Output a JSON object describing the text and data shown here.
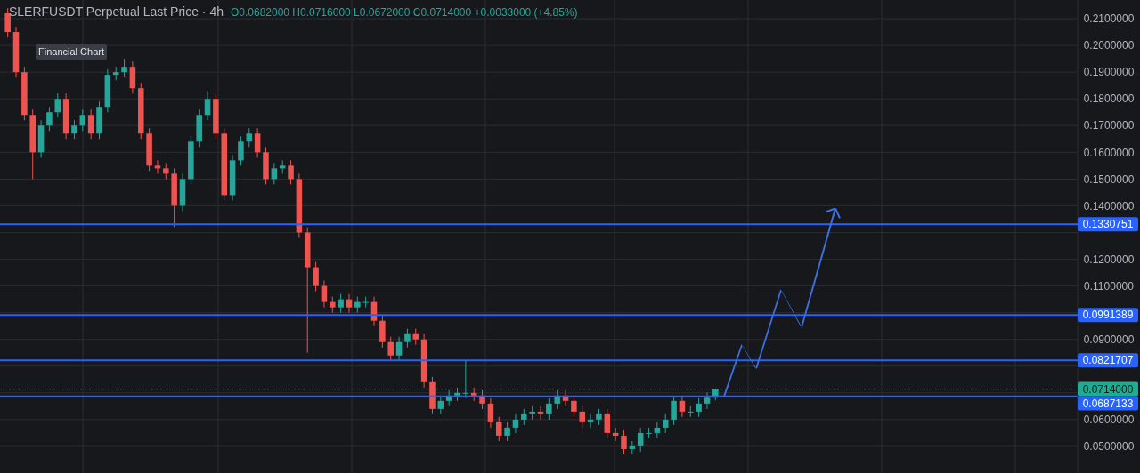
{
  "chart_data": {
    "type": "candlestick",
    "title": "SLERFUSDT Perpetual Last Price · 4h",
    "subtitle": "O0.0682000 H0.0716000 L0.0672000 C0.0714000 +0.0033000 (+4.85%)",
    "annotations": [
      "Financial Chart"
    ],
    "categories": [
      null,
      null,
      null,
      null,
      null,
      null,
      null,
      null,
      null,
      null,
      null,
      null,
      null,
      null,
      null,
      null,
      null,
      null,
      null,
      null,
      null,
      null,
      null,
      null,
      null,
      null,
      null,
      null,
      null,
      null,
      null,
      null,
      null,
      null,
      null,
      null,
      null,
      null,
      null,
      null,
      null,
      null,
      null,
      null,
      null,
      null,
      null,
      null,
      null,
      null,
      null,
      null,
      null,
      null,
      null,
      null,
      null,
      null,
      null,
      null,
      null,
      null,
      null,
      null,
      null,
      null,
      null,
      null,
      null,
      null,
      null,
      null,
      null,
      null,
      null,
      null,
      null,
      null,
      null,
      null,
      null,
      null,
      null,
      null,
      null,
      null,
      null,
      null,
      null,
      null,
      null,
      null,
      null,
      null,
      null,
      null,
      null,
      null,
      null,
      null,
      null,
      null,
      null,
      null,
      null,
      null,
      null,
      null,
      null,
      null,
      null,
      null,
      null,
      null,
      null,
      null,
      null,
      null,
      null,
      null,
      null,
      null,
      null,
      null,
      null,
      null,
      null,
      null,
      null
    ],
    "ohlc": [
      [
        0.212,
        0.214,
        0.203,
        0.205
      ],
      [
        0.205,
        0.207,
        0.188,
        0.19
      ],
      [
        0.19,
        0.192,
        0.172,
        0.174
      ],
      [
        0.174,
        0.176,
        0.15,
        0.16
      ],
      [
        0.16,
        0.172,
        0.158,
        0.17
      ],
      [
        0.17,
        0.177,
        0.168,
        0.175
      ],
      [
        0.175,
        0.182,
        0.173,
        0.18
      ],
      [
        0.18,
        0.182,
        0.165,
        0.167
      ],
      [
        0.167,
        0.172,
        0.165,
        0.17
      ],
      [
        0.17,
        0.176,
        0.168,
        0.174
      ],
      [
        0.174,
        0.176,
        0.165,
        0.167
      ],
      [
        0.167,
        0.179,
        0.165,
        0.177
      ],
      [
        0.177,
        0.191,
        0.175,
        0.189
      ],
      [
        0.189,
        0.192,
        0.187,
        0.19
      ],
      [
        0.19,
        0.195,
        0.188,
        0.192
      ],
      [
        0.192,
        0.194,
        0.182,
        0.184
      ],
      [
        0.184,
        0.186,
        0.165,
        0.167
      ],
      [
        0.167,
        0.169,
        0.153,
        0.155
      ],
      [
        0.155,
        0.157,
        0.152,
        0.154
      ],
      [
        0.154,
        0.156,
        0.15,
        0.152
      ],
      [
        0.152,
        0.154,
        0.132,
        0.14
      ],
      [
        0.14,
        0.152,
        0.138,
        0.15
      ],
      [
        0.15,
        0.166,
        0.148,
        0.164
      ],
      [
        0.164,
        0.176,
        0.162,
        0.174
      ],
      [
        0.174,
        0.183,
        0.172,
        0.18
      ],
      [
        0.18,
        0.182,
        0.165,
        0.167
      ],
      [
        0.167,
        0.169,
        0.142,
        0.144
      ],
      [
        0.144,
        0.159,
        0.142,
        0.157
      ],
      [
        0.157,
        0.166,
        0.155,
        0.164
      ],
      [
        0.164,
        0.169,
        0.162,
        0.167
      ],
      [
        0.167,
        0.169,
        0.158,
        0.16
      ],
      [
        0.16,
        0.162,
        0.148,
        0.15
      ],
      [
        0.15,
        0.156,
        0.148,
        0.154
      ],
      [
        0.154,
        0.157,
        0.152,
        0.155
      ],
      [
        0.155,
        0.157,
        0.148,
        0.15
      ],
      [
        0.15,
        0.152,
        0.128,
        0.13
      ],
      [
        0.13,
        0.132,
        0.085,
        0.117
      ],
      [
        0.117,
        0.119,
        0.108,
        0.11
      ],
      [
        0.11,
        0.112,
        0.102,
        0.104
      ],
      [
        0.104,
        0.106,
        0.1,
        0.102
      ],
      [
        0.102,
        0.107,
        0.1,
        0.105
      ],
      [
        0.105,
        0.107,
        0.1,
        0.102
      ],
      [
        0.102,
        0.106,
        0.1,
        0.104
      ],
      [
        0.104,
        0.106,
        0.102,
        0.104
      ],
      [
        0.104,
        0.106,
        0.095,
        0.097
      ],
      [
        0.097,
        0.099,
        0.087,
        0.089
      ],
      [
        0.089,
        0.091,
        0.082,
        0.084
      ],
      [
        0.084,
        0.091,
        0.082,
        0.089
      ],
      [
        0.089,
        0.094,
        0.087,
        0.092
      ],
      [
        0.092,
        0.094,
        0.088,
        0.09
      ],
      [
        0.09,
        0.092,
        0.072,
        0.074
      ],
      [
        0.074,
        0.076,
        0.062,
        0.064
      ],
      [
        0.064,
        0.069,
        0.062,
        0.067
      ],
      [
        0.067,
        0.071,
        0.065,
        0.069
      ],
      [
        0.069,
        0.072,
        0.067,
        0.07
      ],
      [
        0.07,
        0.082,
        0.068,
        0.07
      ],
      [
        0.07,
        0.072,
        0.067,
        0.069
      ],
      [
        0.069,
        0.071,
        0.064,
        0.066
      ],
      [
        0.066,
        0.068,
        0.057,
        0.059
      ],
      [
        0.059,
        0.061,
        0.052,
        0.054
      ],
      [
        0.054,
        0.059,
        0.052,
        0.057
      ],
      [
        0.057,
        0.062,
        0.055,
        0.06
      ],
      [
        0.06,
        0.064,
        0.058,
        0.062
      ],
      [
        0.062,
        0.065,
        0.06,
        0.063
      ],
      [
        0.063,
        0.065,
        0.06,
        0.062
      ],
      [
        0.062,
        0.068,
        0.06,
        0.066
      ],
      [
        0.066,
        0.071,
        0.064,
        0.069
      ],
      [
        0.069,
        0.071,
        0.065,
        0.067
      ],
      [
        0.067,
        0.069,
        0.061,
        0.063
      ],
      [
        0.063,
        0.065,
        0.057,
        0.059
      ],
      [
        0.059,
        0.062,
        0.057,
        0.06
      ],
      [
        0.06,
        0.064,
        0.058,
        0.062
      ],
      [
        0.062,
        0.064,
        0.053,
        0.055
      ],
      [
        0.055,
        0.057,
        0.052,
        0.054
      ],
      [
        0.054,
        0.056,
        0.047,
        0.049
      ],
      [
        0.049,
        0.052,
        0.047,
        0.05
      ],
      [
        0.05,
        0.057,
        0.048,
        0.055
      ],
      [
        0.055,
        0.057,
        0.053,
        0.055
      ],
      [
        0.055,
        0.059,
        0.053,
        0.057
      ],
      [
        0.057,
        0.062,
        0.055,
        0.06
      ],
      [
        0.06,
        0.069,
        0.058,
        0.067
      ],
      [
        0.067,
        0.069,
        0.061,
        0.063
      ],
      [
        0.063,
        0.065,
        0.061,
        0.063
      ],
      [
        0.063,
        0.068,
        0.061,
        0.066
      ],
      [
        0.066,
        0.0702,
        0.064,
        0.0682
      ],
      [
        0.0682,
        0.0716,
        0.0672,
        0.0714
      ],
      null,
      null,
      null,
      null,
      null,
      null,
      null,
      null,
      null,
      null,
      null,
      null,
      null,
      null,
      null,
      null,
      null,
      null,
      null,
      null,
      null,
      null,
      null,
      null,
      null,
      null,
      null,
      null,
      null,
      null,
      null,
      null,
      null,
      null,
      null,
      null,
      null,
      null,
      null,
      null,
      null,
      null,
      null
    ],
    "ylim": [
      0.04,
      0.217
    ],
    "yticks": [
      {
        "value": 0.05,
        "label": "0.0500000"
      },
      {
        "value": 0.06,
        "label": "0.0600000"
      },
      {
        "value": 0.07,
        "label": null
      },
      {
        "value": 0.08,
        "label": null
      },
      {
        "value": 0.09,
        "label": "0.0900000"
      },
      {
        "value": 0.1,
        "label": null
      },
      {
        "value": 0.11,
        "label": "0.1100000"
      },
      {
        "value": 0.12,
        "label": "0.1200000"
      },
      {
        "value": 0.13,
        "label": null
      },
      {
        "value": 0.14,
        "label": "0.1400000"
      },
      {
        "value": 0.15,
        "label": "0.1500000"
      },
      {
        "value": 0.16,
        "label": "0.1600000"
      },
      {
        "value": 0.17,
        "label": "0.1700000"
      },
      {
        "value": 0.18,
        "label": "0.1800000"
      },
      {
        "value": 0.19,
        "label": "0.1900000"
      },
      {
        "value": 0.2,
        "label": "0.2000000"
      },
      {
        "value": 0.21,
        "label": "0.2100000"
      }
    ],
    "ref_lines": [
      {
        "axis": "y",
        "value": 0.1330751,
        "label": "0.1330751",
        "color": "#2962ff"
      },
      {
        "axis": "y",
        "value": 0.0991389,
        "label": "0.0991389",
        "color": "#2962ff"
      },
      {
        "axis": "y",
        "value": 0.0821707,
        "label": "0.0821707",
        "color": "#2962ff"
      },
      {
        "axis": "y",
        "value": 0.0714,
        "label": "0.0714000",
        "color": "#22ab94",
        "line_style": "dotted"
      },
      {
        "axis": "y",
        "value": 0.0687133,
        "label": "0.0687133",
        "color": "#2962ff"
      }
    ],
    "grid": true
  }
}
